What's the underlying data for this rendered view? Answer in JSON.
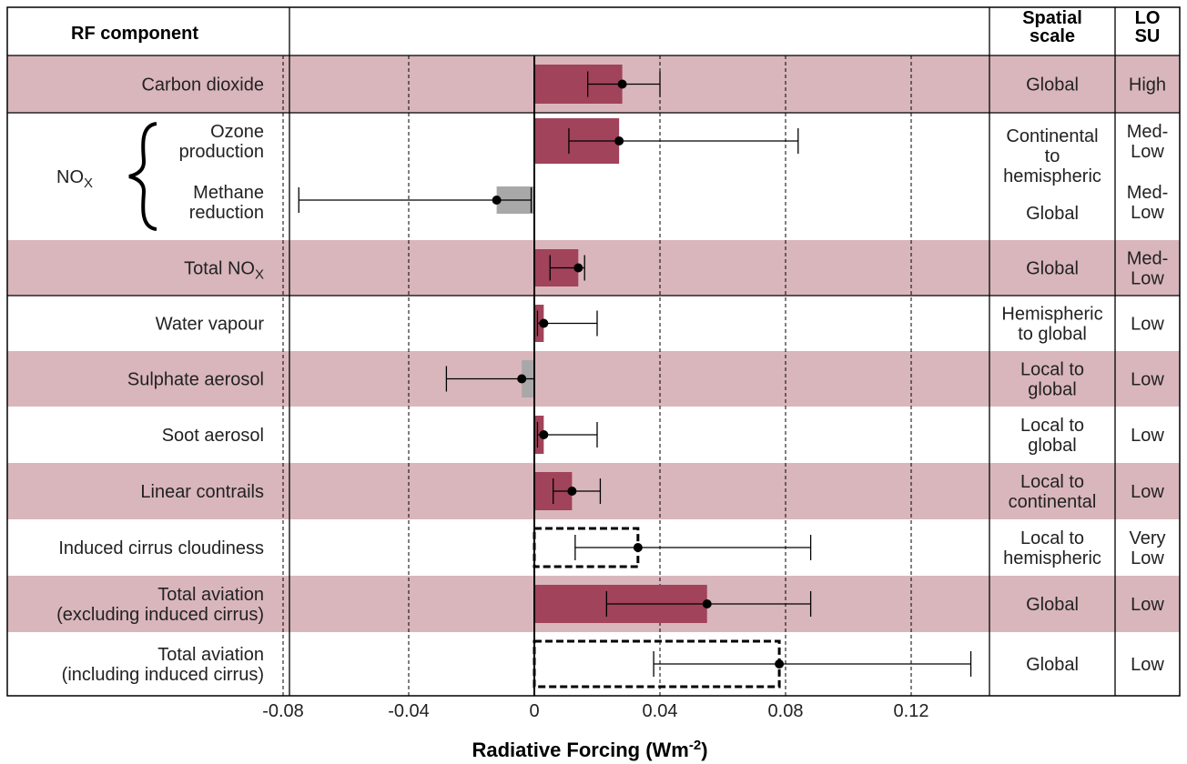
{
  "colors": {
    "row_shade": "#d9b6bc",
    "bar_positive": "#a1435a",
    "bar_negative": "#a8a8a8",
    "frame": "#000000",
    "grid": "#000000"
  },
  "headers": {
    "component": "RF component",
    "spatial_scale": [
      "Spatial",
      "scale"
    ],
    "losu": [
      "LO",
      "SU"
    ]
  },
  "nox_group_label": "NOx",
  "chart_data": {
    "type": "bar",
    "orientation": "horizontal",
    "xlabel": "Radiative Forcing (Wm-2)",
    "xlim": [
      -0.095,
      0.145
    ],
    "xticks": [
      "-0.08",
      "-0.04",
      "0",
      "0.04",
      "0.08",
      "0.12"
    ],
    "grid": "vertical dashed gridlines at -0.08, -0.04, 0.04, 0.08, 0.12",
    "rows": [
      {
        "label": [
          "Carbon dioxide"
        ],
        "value": 0.028,
        "low": 0.017,
        "high": 0.04,
        "style": "solid",
        "shaded": true,
        "spatial_scale": [
          "Global"
        ],
        "losu": [
          "High"
        ]
      },
      {
        "label": [
          "Ozone",
          "production"
        ],
        "value": 0.027,
        "low": 0.011,
        "high": 0.084,
        "style": "solid",
        "shaded": false,
        "spatial_scale": [
          "Continental",
          "to",
          "hemispheric"
        ],
        "losu": [
          "Med-",
          "Low"
        ]
      },
      {
        "label": [
          "Methane",
          "reduction"
        ],
        "value": -0.012,
        "low": -0.075,
        "high": -0.001,
        "style": "solid",
        "shaded": false,
        "spatial_scale": [
          "Global"
        ],
        "losu": [
          "Med-",
          "Low"
        ]
      },
      {
        "label": [
          "Total NOx"
        ],
        "value": 0.014,
        "low": 0.005,
        "high": 0.016,
        "style": "solid",
        "shaded": true,
        "spatial_scale": [
          "Global"
        ],
        "losu": [
          "Med-",
          "Low"
        ]
      },
      {
        "label": [
          "Water vapour"
        ],
        "value": 0.003,
        "low": 0.001,
        "high": 0.02,
        "style": "solid",
        "shaded": false,
        "spatial_scale": [
          "Hemispheric",
          "to global"
        ],
        "losu": [
          "Low"
        ]
      },
      {
        "label": [
          "Sulphate aerosol"
        ],
        "value": -0.004,
        "low": -0.028,
        "high": 0,
        "style": "solid",
        "shaded": true,
        "spatial_scale": [
          "Local to",
          "global"
        ],
        "losu": [
          "Low"
        ]
      },
      {
        "label": [
          "Soot aerosol"
        ],
        "value": 0.003,
        "low": 0.001,
        "high": 0.02,
        "style": "solid",
        "shaded": false,
        "spatial_scale": [
          "Local to",
          "global"
        ],
        "losu": [
          "Low"
        ]
      },
      {
        "label": [
          "Linear contrails"
        ],
        "value": 0.012,
        "low": 0.006,
        "high": 0.021,
        "style": "solid",
        "shaded": true,
        "spatial_scale": [
          "Local to",
          "continental"
        ],
        "losu": [
          "Low"
        ]
      },
      {
        "label": [
          "Induced cirrus cloudiness"
        ],
        "value": 0.033,
        "point": 0.033,
        "low": 0.013,
        "high": 0.088,
        "style": "dashed",
        "shaded": false,
        "spatial_scale": [
          "Local to",
          "hemispheric"
        ],
        "losu": [
          "Very",
          "Low"
        ]
      },
      {
        "label": [
          "Total aviation",
          "(excluding induced cirrus)"
        ],
        "value": 0.055,
        "low": 0.023,
        "high": 0.088,
        "style": "solid",
        "shaded": true,
        "spatial_scale": [
          "Global"
        ],
        "losu": [
          "Low"
        ]
      },
      {
        "label": [
          "Total aviation",
          "(including induced cirrus)"
        ],
        "value": 0.078,
        "low": 0.038,
        "high": 0.139,
        "style": "dashed",
        "shaded": false,
        "spatial_scale": [
          "Global"
        ],
        "losu": [
          "Low"
        ]
      }
    ]
  }
}
